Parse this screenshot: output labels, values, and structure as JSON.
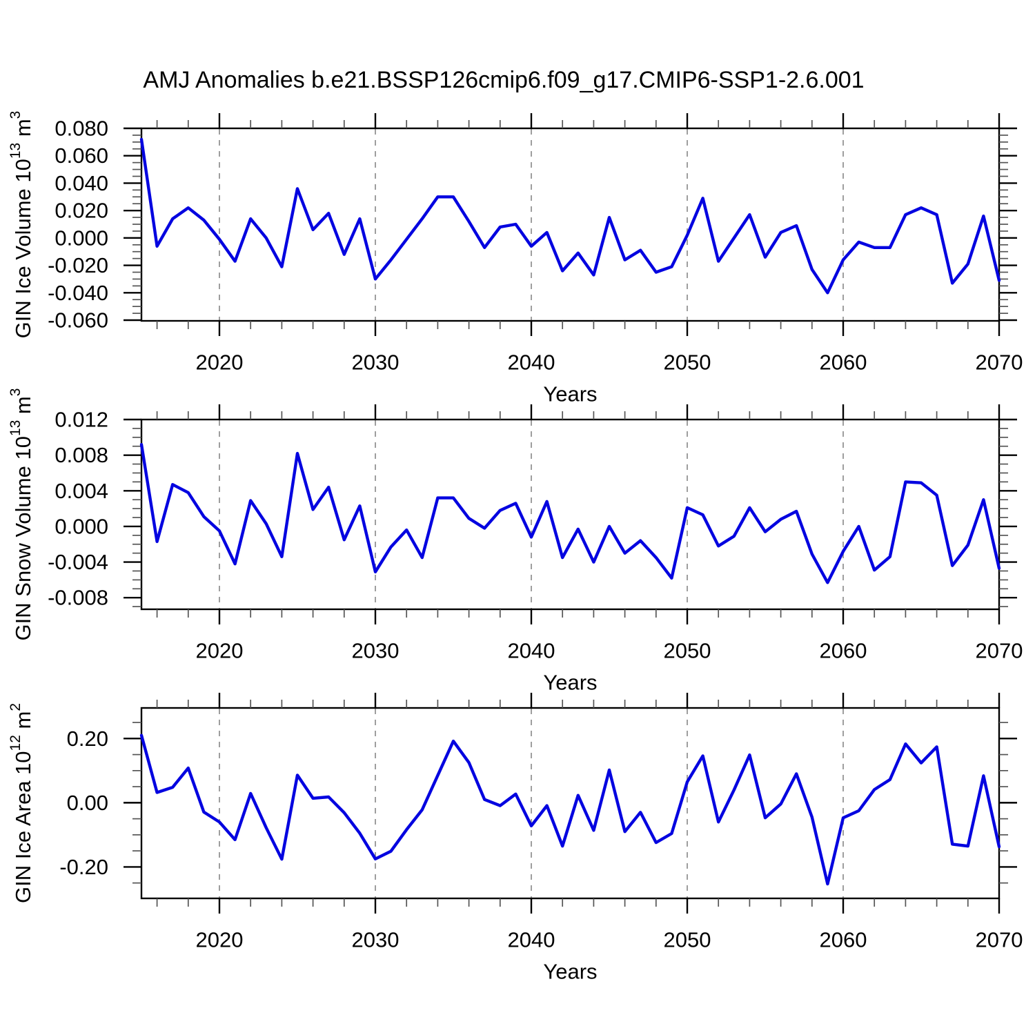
{
  "title": "AMJ Anomalies b.e21.BSSP126cmip6.f09_g17.CMIP6-SSP1-2.6.001",
  "colors": {
    "line": "#0404e0",
    "frame": "#000000",
    "tick_major": "#000000",
    "tick_minor": "#555555",
    "gridline": "#999999",
    "text": "#000000",
    "background": "#ffffff"
  },
  "chart_data": {
    "type": "line",
    "title": "AMJ Anomalies b.e21.BSSP126cmip6.f09_g17.CMIP6-SSP1-2.6.001",
    "xlabel": "Years",
    "xlim": [
      2015,
      2070
    ],
    "x_major_ticks": [
      2020,
      2030,
      2040,
      2050,
      2060,
      2070
    ],
    "x_tick_labels": [
      "2020",
      "2030",
      "2040",
      "2050",
      "2060",
      "2070"
    ],
    "x_minor_step": 2,
    "x_gridlines": [
      2020,
      2030,
      2040,
      2050,
      2060
    ],
    "grid_style": "vertical-dashed",
    "legend": "none",
    "years": [
      2015,
      2016,
      2017,
      2018,
      2019,
      2020,
      2021,
      2022,
      2023,
      2024,
      2025,
      2026,
      2027,
      2028,
      2029,
      2030,
      2031,
      2032,
      2033,
      2034,
      2035,
      2036,
      2037,
      2038,
      2039,
      2040,
      2041,
      2042,
      2043,
      2044,
      2045,
      2046,
      2047,
      2048,
      2049,
      2050,
      2051,
      2052,
      2053,
      2054,
      2055,
      2056,
      2057,
      2058,
      2059,
      2060,
      2061,
      2062,
      2063,
      2064,
      2065,
      2066,
      2067,
      2068,
      2069,
      2070
    ],
    "panels": [
      {
        "name": "gin-ice-volume",
        "ylabel": "GIN Ice Volume 10^13 m^3",
        "ylabel_parts": [
          {
            "t": "GIN Ice Volume 10"
          },
          {
            "t": "13",
            "sup": true
          },
          {
            "t": " m"
          },
          {
            "t": "3",
            "sup": true
          }
        ],
        "ylim": [
          -0.0605,
          0.08
        ],
        "ytick_values": [
          0.08,
          0.06,
          0.04,
          0.02,
          0.0,
          -0.02,
          -0.04,
          -0.06
        ],
        "ytick_labels": [
          "0.080",
          "0.060",
          "0.040",
          "0.020",
          "0.000",
          "-0.020",
          "-0.040",
          "-0.060"
        ],
        "ytick_major_step": 0.02,
        "ytick_minor_step": 0.005,
        "values": [
          0.072,
          -0.006,
          0.014,
          0.022,
          0.013,
          -0.001,
          -0.017,
          0.014,
          0.0,
          -0.021,
          0.036,
          0.006,
          0.018,
          -0.012,
          0.014,
          -0.03,
          -0.016,
          -0.001,
          0.014,
          0.03,
          0.03,
          0.012,
          -0.007,
          0.008,
          0.01,
          -0.006,
          0.004,
          -0.024,
          -0.011,
          -0.027,
          0.015,
          -0.016,
          -0.009,
          -0.025,
          -0.021,
          0.002,
          0.029,
          -0.017,
          0.0,
          0.017,
          -0.014,
          0.004,
          0.009,
          -0.023,
          -0.04,
          -0.016,
          -0.003,
          -0.007,
          -0.007,
          0.017,
          0.022,
          0.017,
          -0.033,
          -0.019,
          0.016,
          -0.031
        ]
      },
      {
        "name": "gin-snow-volume",
        "ylabel": "GIN Snow Volume 10^13 m^3",
        "ylabel_parts": [
          {
            "t": "GIN Snow Volume 10"
          },
          {
            "t": "13",
            "sup": true
          },
          {
            "t": " m"
          },
          {
            "t": "3",
            "sup": true
          }
        ],
        "ylim": [
          -0.0093,
          0.012
        ],
        "ytick_values": [
          0.012,
          0.008,
          0.004,
          0.0,
          -0.004,
          -0.008
        ],
        "ytick_labels": [
          "0.012",
          "0.008",
          "0.004",
          "0.000",
          "-0.004",
          "-0.008"
        ],
        "ytick_major_step": 0.004,
        "ytick_minor_step": 0.001,
        "values": [
          0.0092,
          -0.0017,
          0.0047,
          0.0038,
          0.0011,
          -0.0005,
          -0.0042,
          0.0029,
          0.0003,
          -0.0034,
          0.0082,
          0.0019,
          0.0044,
          -0.0015,
          0.0023,
          -0.0051,
          -0.0023,
          -0.0004,
          -0.0035,
          0.0032,
          0.0032,
          0.0009,
          -0.0002,
          0.0018,
          0.0026,
          -0.0012,
          0.0028,
          -0.0035,
          -0.0003,
          -0.004,
          0.0,
          -0.003,
          -0.0016,
          -0.0035,
          -0.0058,
          0.0021,
          0.0013,
          -0.0022,
          -0.0011,
          0.0021,
          -0.0006,
          0.0008,
          0.0017,
          -0.0031,
          -0.0063,
          -0.0028,
          0.0,
          -0.0049,
          -0.0034,
          0.005,
          0.0049,
          0.0035,
          -0.0044,
          -0.0021,
          0.003,
          -0.0047
        ]
      },
      {
        "name": "gin-ice-area",
        "ylabel": "GIN Ice Area 10^12 m^2",
        "ylabel_parts": [
          {
            "t": "GIN Ice Area 10"
          },
          {
            "t": "12",
            "sup": true
          },
          {
            "t": " m"
          },
          {
            "t": "2",
            "sup": true
          }
        ],
        "ylim": [
          -0.298,
          0.2953
        ],
        "ytick_values": [
          0.2,
          0.0,
          -0.2
        ],
        "ytick_labels": [
          "0.20",
          "0.00",
          "-0.20"
        ],
        "ytick_major_step": 0.2,
        "ytick_minor_step": 0.05,
        "values": [
          0.21,
          0.032,
          0.048,
          0.108,
          -0.029,
          -0.06,
          -0.115,
          0.029,
          -0.078,
          -0.176,
          0.086,
          0.014,
          0.018,
          -0.031,
          -0.095,
          -0.175,
          -0.151,
          -0.084,
          -0.022,
          0.085,
          0.192,
          0.125,
          0.01,
          -0.009,
          0.027,
          -0.072,
          -0.009,
          -0.135,
          0.023,
          -0.086,
          0.102,
          -0.09,
          -0.03,
          -0.124,
          -0.096,
          0.065,
          0.146,
          -0.06,
          0.04,
          0.149,
          -0.047,
          -0.004,
          0.09,
          -0.045,
          -0.253,
          -0.047,
          -0.025,
          0.041,
          0.072,
          0.183,
          0.124,
          0.174,
          -0.129,
          -0.135,
          0.084,
          -0.137
        ]
      }
    ]
  }
}
